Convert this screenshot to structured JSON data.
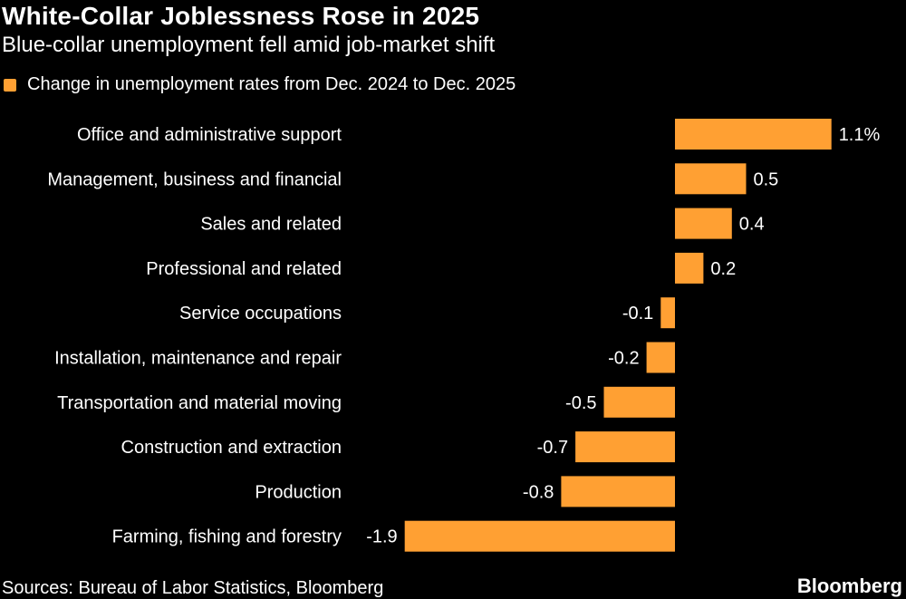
{
  "header": {
    "title": "White-Collar Joblessness Rose in 2025",
    "subtitle": "Blue-collar unemployment fell amid job-market shift"
  },
  "legend": {
    "label": "Change in unemployment rates from Dec. 2024 to Dec. 2025"
  },
  "chart_data": {
    "type": "bar",
    "orientation": "horizontal",
    "title": "White-Collar Joblessness Rose in 2025",
    "subtitle": "Blue-collar unemployment fell amid job-market shift",
    "xlabel": "",
    "ylabel": "",
    "grid": false,
    "legend_position": "top-left",
    "categories": [
      "Office and administrative support",
      "Management, business and financial",
      "Sales and related",
      "Professional and related",
      "Service occupations",
      "Installation, maintenance and repair",
      "Transportation and material moving",
      "Construction and extraction",
      "Production",
      "Farming, fishing and forestry"
    ],
    "series": [
      {
        "name": "Change in unemployment rates from Dec. 2024 to Dec. 2025",
        "values": [
          1.1,
          0.5,
          0.4,
          0.2,
          -0.1,
          -0.2,
          -0.5,
          -0.7,
          -0.8,
          -1.9
        ],
        "labels": [
          "1.1%",
          "0.5",
          "0.4",
          "0.2",
          "-0.1",
          "-0.2",
          "-0.5",
          "-0.7",
          "-0.8",
          "-1.9"
        ]
      }
    ],
    "xlim": [
      -1.9,
      1.1
    ],
    "bar_color": "#ffa033"
  },
  "footer": {
    "source": "Sources: Bureau of Labor Statistics, Bloomberg",
    "brand": "Bloomberg"
  }
}
